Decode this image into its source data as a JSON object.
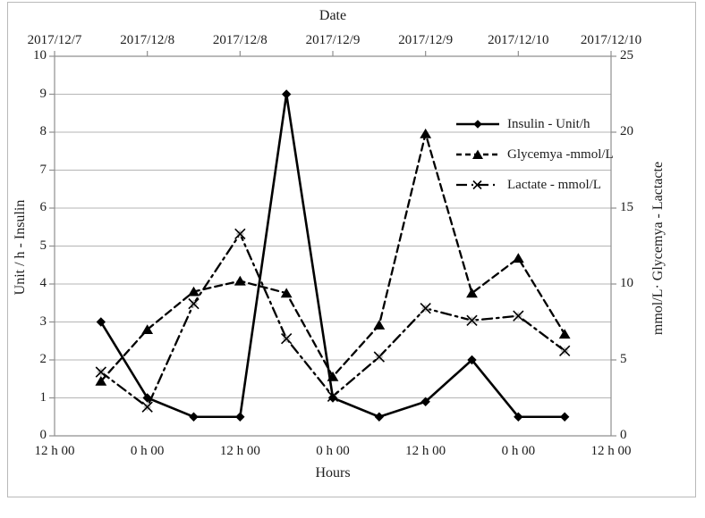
{
  "chart_data": {
    "type": "line",
    "top_x_axis": {
      "title": "Date",
      "tick_labels": [
        "2017/12/7",
        "2017/12/8",
        "2017/12/8",
        "2017/12/9",
        "2017/12/9",
        "2017/12/10",
        "2017/12/10"
      ]
    },
    "bottom_x_axis": {
      "title": "Hours",
      "tick_labels": [
        "12 h 00",
        "0 h 00",
        "12 h 00",
        "0 h 00",
        "12 h 00",
        "0 h 00",
        "12 h 00"
      ]
    },
    "y_left": {
      "title": "Unit / h - Insulin",
      "min": 0,
      "max": 10,
      "step": 1,
      "tick_labels": [
        "10",
        "9",
        "8",
        "7",
        "6",
        "5",
        "4",
        "3",
        "2",
        "1",
        "0"
      ]
    },
    "y_right": {
      "title": "mmol/L· Glycemya - Lactacte",
      "min": 0,
      "max": 25,
      "step": 5,
      "tick_labels": [
        "25",
        "20",
        "15",
        "10",
        "5",
        "0"
      ]
    },
    "x_layout": {
      "label_count": 7,
      "points_per_label_interval": 2,
      "first_point_halfstep": 1,
      "note": "data points fall every half interval (6 h) between the 12 h labels"
    },
    "series": [
      {
        "key": "insulin",
        "name": "Insulin - Unit/h",
        "axis": "left",
        "line": "solid",
        "marker": "diamond",
        "values": [
          3,
          1,
          0.5,
          0.5,
          9,
          1,
          0.5,
          0.9,
          2,
          0.5,
          0.5
        ]
      },
      {
        "key": "glycemya",
        "name": "Glycemya -mmol/L",
        "axis": "right",
        "line": "dashed",
        "marker": "triangle",
        "values": [
          3.6,
          7.0,
          9.5,
          10.2,
          9.4,
          3.9,
          7.3,
          19.9,
          9.4,
          11.7,
          6.7
        ]
      },
      {
        "key": "lactate",
        "name": "Lactate - mmol/L",
        "axis": "right",
        "line": "dashdot",
        "marker": "x",
        "values": [
          4.2,
          1.9,
          8.7,
          13.3,
          6.4,
          2.6,
          5.2,
          8.4,
          7.6,
          7.9,
          5.6
        ]
      }
    ],
    "grid": "horizontal-only",
    "legend_position": "inside-top-right",
    "colors": {
      "series_stroke": "#000000",
      "grid": "#b5b5b5",
      "axis": "#8f8f8f",
      "x_marker_fill": "#c9c9c9",
      "background": "#ffffff",
      "frame_border": "#b9b9b9"
    }
  }
}
